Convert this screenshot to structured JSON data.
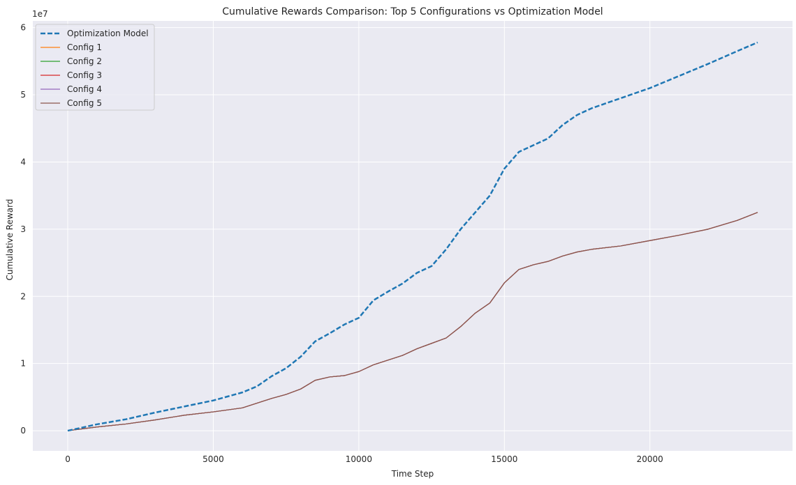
{
  "chart_data": {
    "type": "line",
    "title": "Cumulative Rewards Comparison: Top 5 Configurations vs Optimization Model",
    "xlabel": "Time Step",
    "ylabel": "Cumulative Reward",
    "y_offset_label": "1e7",
    "xlim": [
      -1200,
      24900
    ],
    "ylim": [
      -3000000,
      61000000
    ],
    "xticks": [
      0,
      5000,
      10000,
      15000,
      20000
    ],
    "xtick_labels": [
      "0",
      "5000",
      "10000",
      "15000",
      "20000"
    ],
    "yticks": [
      0,
      10000000,
      20000000,
      30000000,
      40000000,
      50000000,
      60000000
    ],
    "ytick_labels": [
      "0",
      "1",
      "2",
      "3",
      "4",
      "5",
      "6"
    ],
    "grid": true,
    "legend_position": "upper-left",
    "background_color": "#eaeaf2",
    "grid_color": "#ffffff",
    "series": [
      {
        "name": "Optimization Model",
        "color": "#1f77b4",
        "style": "dashed",
        "x": [
          0,
          1000,
          2000,
          3000,
          4000,
          5000,
          6000,
          6500,
          7000,
          7500,
          8000,
          8500,
          9000,
          9500,
          10000,
          10500,
          11000,
          11500,
          12000,
          12500,
          13000,
          13500,
          14000,
          14500,
          15000,
          15500,
          16000,
          16500,
          17000,
          17500,
          18000,
          19000,
          20000,
          21000,
          22000,
          23000,
          23700
        ],
        "y": [
          0,
          950000,
          1700000,
          2700000,
          3600000,
          4500000,
          5700000,
          6600000,
          8100000,
          9300000,
          11000000,
          13300000,
          14500000,
          15800000,
          16800000,
          19400000,
          20700000,
          21900000,
          23500000,
          24500000,
          27000000,
          30000000,
          32500000,
          35000000,
          39000000,
          41500000,
          42500000,
          43500000,
          45500000,
          47000000,
          48000000,
          49500000,
          51000000,
          52800000,
          54600000,
          56500000,
          57800000
        ]
      },
      {
        "name": "Config 1",
        "color": "#ff7f0e",
        "style": "solid",
        "x": [
          0,
          1000,
          2000,
          3000,
          4000,
          5000,
          6000,
          6500,
          7000,
          7500,
          8000,
          8500,
          9000,
          9500,
          10000,
          10500,
          11000,
          11500,
          12000,
          12500,
          13000,
          13500,
          14000,
          14500,
          15000,
          15500,
          16000,
          16500,
          17000,
          17500,
          18000,
          19000,
          20000,
          21000,
          22000,
          23000,
          23700
        ],
        "y": [
          0,
          550000,
          1000000,
          1600000,
          2300000,
          2800000,
          3400000,
          4100000,
          4800000,
          5400000,
          6200000,
          7500000,
          8000000,
          8200000,
          8800000,
          9800000,
          10500000,
          11200000,
          12200000,
          13000000,
          13800000,
          15500000,
          17500000,
          19000000,
          22000000,
          24000000,
          24700000,
          25200000,
          26000000,
          26600000,
          27000000,
          27500000,
          28300000,
          29100000,
          30000000,
          31300000,
          32500000
        ]
      },
      {
        "name": "Config 2",
        "color": "#2ca02c",
        "style": "solid",
        "x": [
          0,
          1000,
          2000,
          3000,
          4000,
          5000,
          6000,
          6500,
          7000,
          7500,
          8000,
          8500,
          9000,
          9500,
          10000,
          10500,
          11000,
          11500,
          12000,
          12500,
          13000,
          13500,
          14000,
          14500,
          15000,
          15500,
          16000,
          16500,
          17000,
          17500,
          18000,
          19000,
          20000,
          21000,
          22000,
          23000,
          23700
        ],
        "y": [
          0,
          550000,
          1000000,
          1600000,
          2300000,
          2800000,
          3400000,
          4100000,
          4800000,
          5400000,
          6200000,
          7500000,
          8000000,
          8200000,
          8800000,
          9800000,
          10500000,
          11200000,
          12200000,
          13000000,
          13800000,
          15500000,
          17500000,
          19000000,
          22000000,
          24000000,
          24700000,
          25200000,
          26000000,
          26600000,
          27000000,
          27500000,
          28300000,
          29100000,
          30000000,
          31300000,
          32500000
        ]
      },
      {
        "name": "Config 3",
        "color": "#d62728",
        "style": "solid",
        "x": [
          0,
          1000,
          2000,
          3000,
          4000,
          5000,
          6000,
          6500,
          7000,
          7500,
          8000,
          8500,
          9000,
          9500,
          10000,
          10500,
          11000,
          11500,
          12000,
          12500,
          13000,
          13500,
          14000,
          14500,
          15000,
          15500,
          16000,
          16500,
          17000,
          17500,
          18000,
          19000,
          20000,
          21000,
          22000,
          23000,
          23700
        ],
        "y": [
          0,
          550000,
          1000000,
          1600000,
          2300000,
          2800000,
          3400000,
          4100000,
          4800000,
          5400000,
          6200000,
          7500000,
          8000000,
          8200000,
          8800000,
          9800000,
          10500000,
          11200000,
          12200000,
          13000000,
          13800000,
          15500000,
          17500000,
          19000000,
          22000000,
          24000000,
          24700000,
          25200000,
          26000000,
          26600000,
          27000000,
          27500000,
          28300000,
          29100000,
          30000000,
          31300000,
          32500000
        ]
      },
      {
        "name": "Config 4",
        "color": "#9467bd",
        "style": "solid",
        "x": [
          0,
          1000,
          2000,
          3000,
          4000,
          5000,
          6000,
          6500,
          7000,
          7500,
          8000,
          8500,
          9000,
          9500,
          10000,
          10500,
          11000,
          11500,
          12000,
          12500,
          13000,
          13500,
          14000,
          14500,
          15000,
          15500,
          16000,
          16500,
          17000,
          17500,
          18000,
          19000,
          20000,
          21000,
          22000,
          23000,
          23700
        ],
        "y": [
          0,
          550000,
          1000000,
          1600000,
          2300000,
          2800000,
          3400000,
          4100000,
          4800000,
          5400000,
          6200000,
          7500000,
          8000000,
          8200000,
          8800000,
          9800000,
          10500000,
          11200000,
          12200000,
          13000000,
          13800000,
          15500000,
          17500000,
          19000000,
          22000000,
          24000000,
          24700000,
          25200000,
          26000000,
          26600000,
          27000000,
          27500000,
          28300000,
          29100000,
          30000000,
          31300000,
          32500000
        ]
      },
      {
        "name": "Config 5",
        "color": "#8c564b",
        "style": "solid",
        "x": [
          0,
          1000,
          2000,
          3000,
          4000,
          5000,
          6000,
          6500,
          7000,
          7500,
          8000,
          8500,
          9000,
          9500,
          10000,
          10500,
          11000,
          11500,
          12000,
          12500,
          13000,
          13500,
          14000,
          14500,
          15000,
          15500,
          16000,
          16500,
          17000,
          17500,
          18000,
          19000,
          20000,
          21000,
          22000,
          23000,
          23700
        ],
        "y": [
          0,
          550000,
          1000000,
          1600000,
          2300000,
          2800000,
          3400000,
          4100000,
          4800000,
          5400000,
          6200000,
          7500000,
          8000000,
          8200000,
          8800000,
          9800000,
          10500000,
          11200000,
          12200000,
          13000000,
          13800000,
          15500000,
          17500000,
          19000000,
          22000000,
          24000000,
          24700000,
          25200000,
          26000000,
          26600000,
          27000000,
          27500000,
          28300000,
          29100000,
          30000000,
          31300000,
          32500000
        ]
      }
    ]
  }
}
